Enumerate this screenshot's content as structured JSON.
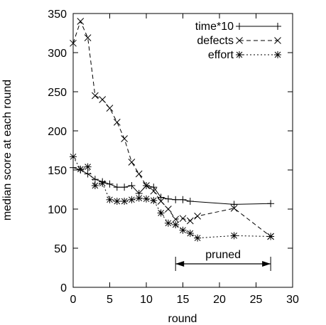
{
  "chart_data": {
    "type": "line",
    "title": "",
    "xlabel": "round",
    "ylabel": "median score at each round",
    "xlim": [
      0,
      30
    ],
    "ylim": [
      0,
      350
    ],
    "xticks": [
      "0",
      "5",
      "10",
      "15",
      "20",
      "25",
      "30"
    ],
    "yticks": [
      "0",
      "50",
      "100",
      "150",
      "200",
      "250",
      "300",
      "350"
    ],
    "grid": false,
    "legend_position": "top-right",
    "series": [
      {
        "name": "time*10",
        "line_style": "solid",
        "marker": "plus",
        "x": [
          0,
          1,
          2,
          3,
          4,
          5,
          6,
          7,
          8,
          9,
          10,
          11,
          12,
          13,
          14,
          15,
          16,
          22,
          27
        ],
        "y": [
          153,
          150,
          145,
          138,
          135,
          132,
          128,
          128,
          130,
          120,
          130,
          128,
          115,
          113,
          112,
          112,
          110,
          106,
          107
        ]
      },
      {
        "name": "defects",
        "line_style": "dashed",
        "marker": "x",
        "x": [
          0,
          1,
          2,
          3,
          4,
          5,
          6,
          7,
          8,
          9,
          10,
          11,
          12,
          13,
          14,
          15,
          16,
          17,
          22,
          27
        ],
        "y": [
          312,
          340,
          319,
          245,
          240,
          229,
          211,
          190,
          160,
          145,
          130,
          123,
          110,
          100,
          87,
          88,
          85,
          91,
          101,
          65
        ]
      },
      {
        "name": "effort",
        "line_style": "dotted",
        "marker": "star",
        "x": [
          0,
          1,
          2,
          3,
          4,
          5,
          6,
          7,
          8,
          9,
          10,
          11,
          12,
          13,
          14,
          15,
          16,
          17,
          22,
          27
        ],
        "y": [
          167,
          151,
          154,
          130,
          133,
          112,
          110,
          110,
          112,
          114,
          113,
          111,
          95,
          82,
          80,
          73,
          69,
          63,
          66,
          65
        ]
      }
    ],
    "annotation": {
      "label": "pruned",
      "x_start": 14,
      "x_end": 27,
      "y": 30
    }
  }
}
